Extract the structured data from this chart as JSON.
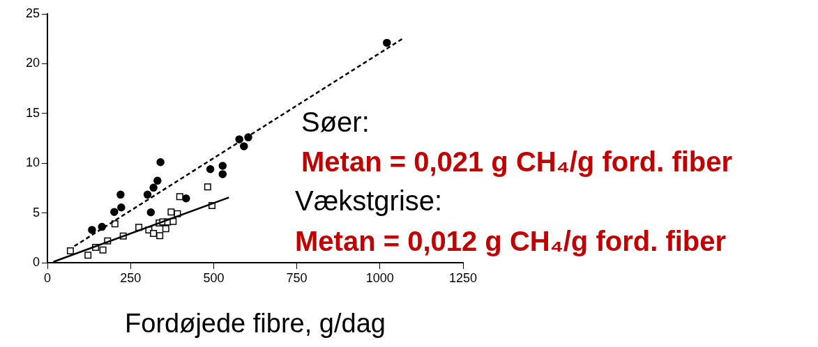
{
  "chart_data": {
    "type": "scatter",
    "xlabel": "Fordøjede fibre, g/dag",
    "xlim": [
      0,
      1250
    ],
    "xticks": [
      0,
      250,
      500,
      750,
      1000,
      1250
    ],
    "ylim": [
      0,
      25
    ],
    "yticks": [
      0,
      5,
      10,
      15,
      20,
      25
    ],
    "legend": false,
    "series": [
      {
        "type": "scatter",
        "marker": "circle",
        "color": "#000000",
        "x": [
          134,
          164,
          201,
          222,
          220,
          301,
          319,
          331,
          311,
          417,
          340,
          490,
          527,
          527,
          577,
          604,
          591,
          1021
        ],
        "values": [
          3.3,
          3.6,
          5.1,
          5.55,
          6.84,
          6.84,
          7.54,
          8.24,
          5.06,
          6.46,
          10.1,
          9.4,
          9.73,
          8.9,
          12.4,
          12.6,
          11.7,
          22.1
        ]
      },
      {
        "type": "scatter",
        "marker": "square",
        "color": "#000000",
        "x": [
          69,
          122,
          145,
          167,
          181,
          203,
          228,
          275,
          305,
          319,
          338,
          356,
          336,
          347,
          362,
          378,
          372,
          391,
          398,
          482,
          495
        ],
        "values": [
          1.19,
          0.75,
          1.54,
          1.28,
          2.19,
          3.9,
          2.68,
          3.55,
          3.29,
          2.94,
          2.71,
          3.41,
          3.99,
          4.1,
          4.1,
          4.15,
          5.09,
          4.92,
          6.63,
          7.61,
          5.74
        ]
      },
      {
        "type": "line",
        "marker": "none",
        "line_style": "dashed",
        "color": "#000000",
        "x": [
          81,
          1070
        ],
        "values": [
          1.66,
          22.55
        ]
      },
      {
        "type": "line",
        "marker": "none",
        "line_style": "solid",
        "color": "#000000",
        "x": [
          18,
          546
        ],
        "values": [
          0.09,
          6.56
        ]
      }
    ],
    "annotations": [
      "Søer:",
      "Metan = 0,021 g CH₄/g ford. fiber",
      "Vækstgrise:",
      "Metan = 0,012 g CH₄/g ford. fiber"
    ]
  }
}
